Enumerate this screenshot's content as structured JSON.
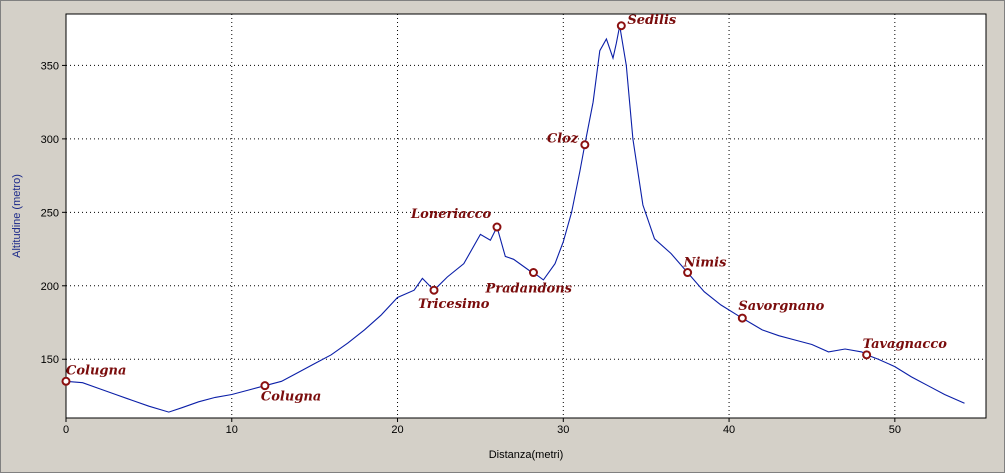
{
  "chart_data": {
    "type": "line",
    "title": "",
    "xlabel": "Distanza(metri)",
    "ylabel": "Altitudine  (metro)",
    "xlim": [
      0,
      55.5
    ],
    "ylim": [
      110,
      385
    ],
    "x_ticks": [
      0,
      10,
      20,
      30,
      40,
      50
    ],
    "y_ticks": [
      150,
      200,
      250,
      300,
      350
    ],
    "grid": true,
    "line_color": "#0b1fa8",
    "marker_color": "#8b1010",
    "series": [
      {
        "name": "",
        "x": [
          0,
          1,
          2,
          3,
          4,
          5,
          6.2,
          7,
          8,
          9,
          10,
          11,
          12,
          13,
          14,
          15,
          16,
          17,
          18,
          19,
          20,
          21,
          21.5,
          22.2,
          23,
          24,
          25,
          25.6,
          26,
          26.5,
          27,
          28,
          28.2,
          28.8,
          29.5,
          30,
          30.5,
          31,
          31.3,
          31.8,
          32.2,
          32.6,
          33,
          33.2,
          33.4,
          33.8,
          34.2,
          34.8,
          35.5,
          36.5,
          37.5,
          38.5,
          39.5,
          40.5,
          40.8,
          42,
          43,
          44,
          45,
          46,
          47,
          48,
          48.3,
          49,
          50,
          51,
          52,
          53,
          54.2
        ],
        "y": [
          135,
          134,
          130,
          126,
          122,
          118,
          114,
          117,
          121,
          124,
          126,
          129,
          132,
          135,
          141,
          147,
          153,
          161,
          170,
          180,
          192,
          197,
          205,
          197,
          206,
          215,
          235,
          231,
          240,
          220,
          218,
          210,
          209,
          204,
          215,
          230,
          250,
          278,
          296,
          325,
          360,
          368,
          355,
          365,
          377,
          350,
          300,
          255,
          232,
          222,
          209,
          196,
          187,
          180,
          178,
          170,
          166,
          163,
          160,
          155,
          157,
          155,
          153,
          150,
          145,
          138,
          132,
          126,
          120
        ]
      }
    ],
    "waypoints": [
      {
        "name": "Colugna",
        "x": 0,
        "y": 135
      },
      {
        "name": "Colugna",
        "x": 12,
        "y": 132
      },
      {
        "name": "Tricesimo",
        "x": 22.2,
        "y": 197
      },
      {
        "name": "Loneriacco",
        "x": 26,
        "y": 240
      },
      {
        "name": "Pradandons",
        "x": 28.2,
        "y": 209
      },
      {
        "name": "Cloz",
        "x": 31.3,
        "y": 296
      },
      {
        "name": "Sedilis",
        "x": 33.5,
        "y": 377
      },
      {
        "name": "Nimis",
        "x": 37.5,
        "y": 209
      },
      {
        "name": "Savorgnano",
        "x": 40.8,
        "y": 178
      },
      {
        "name": "Tavagnacco",
        "x": 48.3,
        "y": 153
      }
    ]
  }
}
